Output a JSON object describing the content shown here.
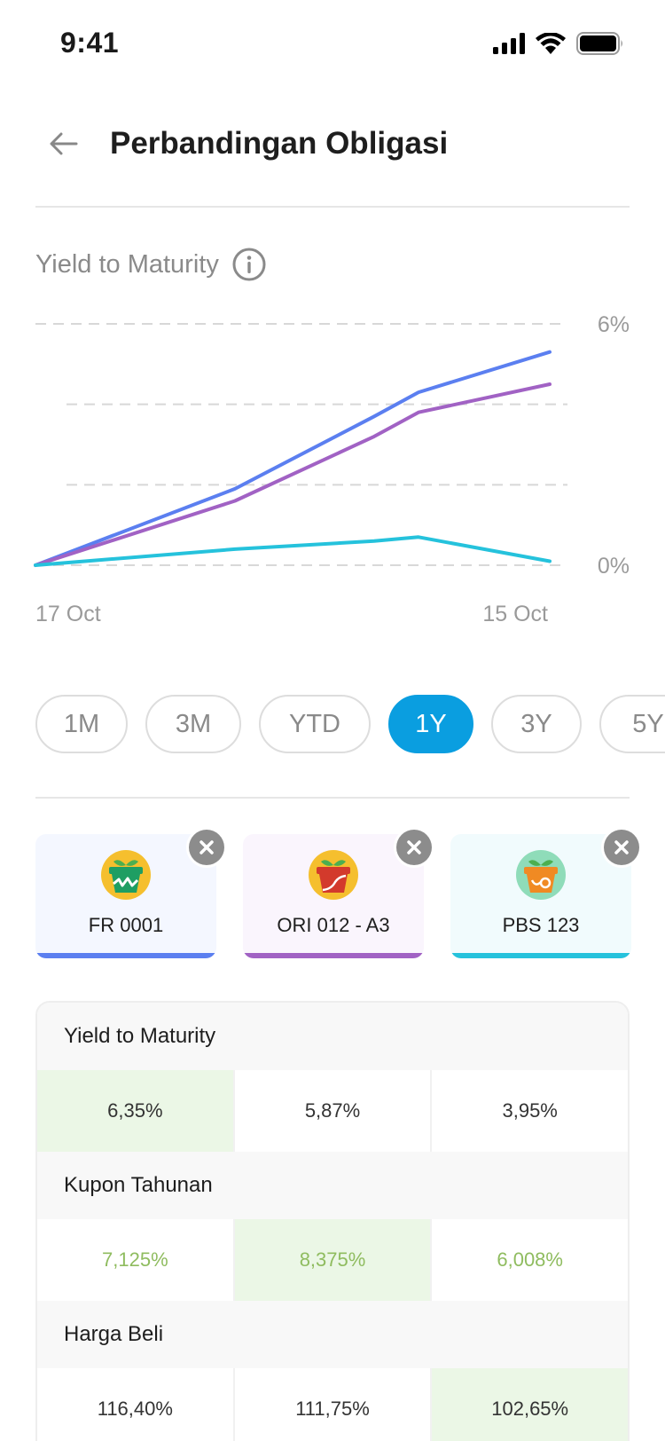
{
  "status": {
    "time": "9:41"
  },
  "header": {
    "title": "Perbandingan Obligasi"
  },
  "ytm": {
    "label": "Yield to Maturity"
  },
  "chart_data": {
    "type": "line",
    "x": [
      "17 Oct",
      "",
      "",
      "",
      "15 Oct"
    ],
    "x_tick_labels": [
      "17 Oct",
      "15 Oct"
    ],
    "y_tick_labels": [
      "6%",
      "0%"
    ],
    "ylim": [
      0,
      6
    ],
    "grid": true,
    "series": [
      {
        "values": [
          0.0,
          1.9,
          3.7,
          4.3,
          5.3
        ],
        "color": "#5b7ff0"
      },
      {
        "values": [
          0.0,
          1.6,
          3.2,
          3.8,
          4.5
        ],
        "color": "#a162c4"
      },
      {
        "values": [
          0.0,
          0.4,
          0.6,
          0.7,
          0.1
        ],
        "color": "#25c2dc"
      }
    ]
  },
  "ranges": {
    "options": [
      "1M",
      "3M",
      "YTD",
      "1Y",
      "3Y",
      "5Y"
    ],
    "selected": "1Y"
  },
  "bonds": [
    {
      "name": "FR 0001",
      "color": "#5b7ff0",
      "bg": "#f4f7ff",
      "pot": "#1e9e63",
      "mark": "wave"
    },
    {
      "name": "ORI 012 - A3",
      "color": "#a162c4",
      "bg": "#faf5fd",
      "pot": "#d33a2c",
      "mark": "curve"
    },
    {
      "name": "PBS 123",
      "color": "#25c2dc",
      "bg": "#f1fbfd",
      "pot": "#f08a23",
      "mark": "swirl"
    }
  ],
  "table": {
    "sections": [
      {
        "title": "Yield to Maturity",
        "values": [
          "6,35%",
          "5,87%",
          "3,95%"
        ],
        "best_index": 0,
        "green_text": false
      },
      {
        "title": "Kupon Tahunan",
        "values": [
          "7,125%",
          "8,375%",
          "6,008%"
        ],
        "best_index": 1,
        "green_text": true
      },
      {
        "title": "Harga Beli",
        "values": [
          "116,40%",
          "111,75%",
          "102,65%"
        ],
        "best_index": 2,
        "green_text": false
      }
    ]
  },
  "colors": {
    "accent": "#0a9ee0",
    "best_bg": "#ebf7e6",
    "positive_text": "#8fbc5f"
  },
  "icons": [
    "signal-icon",
    "wifi-icon",
    "battery-icon",
    "back-arrow-icon",
    "info-icon",
    "close-icon",
    "bond-pot-icon"
  ]
}
